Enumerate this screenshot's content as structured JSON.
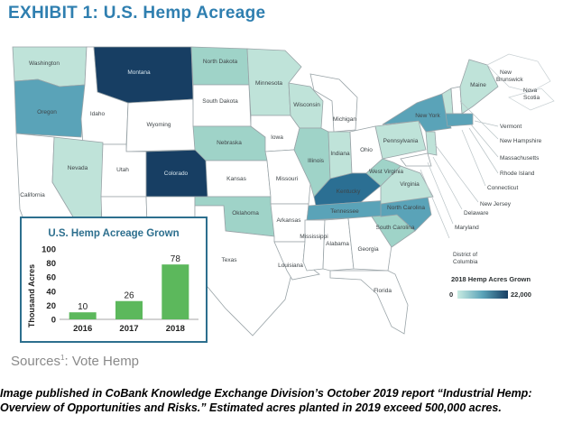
{
  "title": "EXHIBIT 1: U.S. Hemp Acreage",
  "map": {
    "state_labels": {
      "wa": "Washington",
      "or": "Oregon",
      "ca": "California",
      "id": "Idaho",
      "nv": "Nevada",
      "mt": "Montana",
      "wy": "Wyoming",
      "ut": "Utah",
      "co": "Colorado",
      "nd": "North Dakota",
      "sd": "South Dakota",
      "ne": "Nebraska",
      "ks": "Kansas",
      "ok": "Oklahoma",
      "tx": "Texas",
      "mn": "Minnesota",
      "ia": "Iowa",
      "mo": "Missouri",
      "ar": "Arkansas",
      "la": "Louisiana",
      "wi": "Wisconsin",
      "il": "Illinois",
      "mi": "Michigan",
      "in": "Indiana",
      "oh": "Ohio",
      "ky": "Kentucky",
      "tn": "Tennessee",
      "ms": "Mississippi",
      "al": "Alabama",
      "ga": "Georgia",
      "fl": "Florida",
      "sc": "South Carolina",
      "nc": "North Carolina",
      "va": "Virginia",
      "wv": "West Virginia",
      "pa": "Pennsylvania",
      "ny": "New York",
      "me": "Maine"
    },
    "callouts": {
      "nb": "New Brunswick",
      "ns": "Nova Scotia",
      "vt": "Vermont",
      "nh": "New Hampshire",
      "ma": "Massachusetts",
      "ri": "Rhode Island",
      "ct": "Connecticut",
      "nj": "New Jersey",
      "de": "Delaware",
      "md": "Maryland",
      "dc1": "District of",
      "dc2": "Columbia"
    },
    "legend": {
      "title": "2018 Hemp Acres Grown",
      "min": "0",
      "max": "22,000"
    },
    "colors": {
      "none": "#ffffff",
      "low": "#bfe3d9",
      "light": "#9fd3c8",
      "mid": "#5aa3b8",
      "high": "#2b6f93",
      "dark": "#173e63"
    }
  },
  "chart_data": {
    "type": "bar",
    "title": "U.S. Hemp Acreage Grown",
    "ylabel": "Thousand Acres",
    "categories": [
      "2016",
      "2017",
      "2018"
    ],
    "values": [
      10,
      26,
      78
    ],
    "ylim": [
      0,
      100
    ],
    "yticks": [
      "0",
      "20",
      "40",
      "60",
      "80",
      "100"
    ],
    "bar_color": "#5cb85c"
  },
  "sources_text": "Sources",
  "sources_sup": "1",
  "sources_tail": ": Vote Hemp",
  "caption": "Image published in CoBank Knowledge Exchange Division’s October 2019 report “Industrial Hemp: Overview of Opportunities and Risks.” Estimated  acres planted in 2019 exceed 500,000 acres."
}
